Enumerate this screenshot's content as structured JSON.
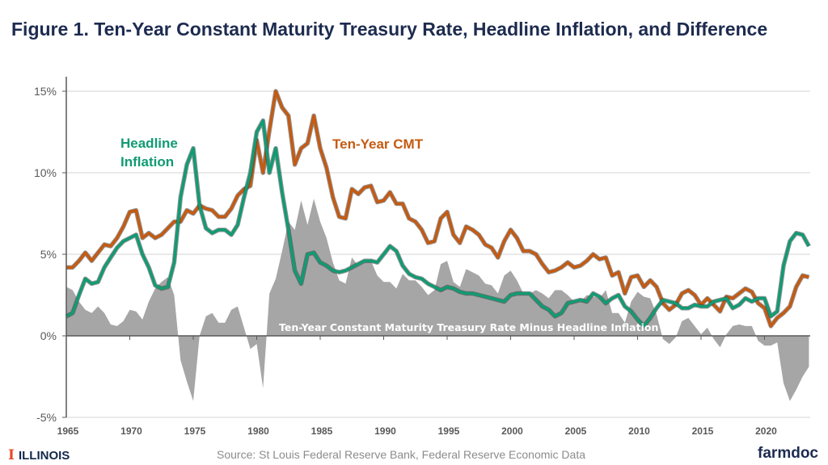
{
  "chart_data": {
    "type": "line",
    "title": "Figure 1. Ten-Year Constant Maturity Treasury Rate, Headline Inflation, and Difference",
    "xlabel": "",
    "ylabel": "",
    "x_start": 1965,
    "x_step": 0.5,
    "xlim": [
      1965,
      2023.6
    ],
    "ylim": [
      -5,
      15
    ],
    "y_ticks": [
      -5,
      0,
      5,
      10,
      15
    ],
    "y_tick_labels": [
      "-5%",
      "0%",
      "5%",
      "10%",
      "15%"
    ],
    "x_ticks": [
      1965,
      1970,
      1975,
      1980,
      1985,
      1990,
      1995,
      2000,
      2005,
      2010,
      2015,
      2020
    ],
    "x_tick_labels": [
      "1965",
      "1970",
      "1975",
      "1980",
      "1985",
      "1990",
      "1995",
      "2000",
      "2005",
      "2010",
      "2015",
      "2020"
    ],
    "grid": true,
    "series": [
      {
        "name": "Ten-Year CMT",
        "label": "Ten-Year CMT",
        "color": "#c55a11",
        "values": [
          4.2,
          4.2,
          4.6,
          5.1,
          4.6,
          5.1,
          5.6,
          5.5,
          6.0,
          6.7,
          7.6,
          7.7,
          6.0,
          6.3,
          6.0,
          6.2,
          6.6,
          7.0,
          7.0,
          7.7,
          7.5,
          8.0,
          7.8,
          7.7,
          7.3,
          7.3,
          7.8,
          8.6,
          9.0,
          9.2,
          12.0,
          10.0,
          12.6,
          15.0,
          14.0,
          13.5,
          10.5,
          11.5,
          11.8,
          13.5,
          11.5,
          10.3,
          8.5,
          7.3,
          7.2,
          9.0,
          8.7,
          9.1,
          9.2,
          8.2,
          8.3,
          8.8,
          8.1,
          8.1,
          7.2,
          7.0,
          6.5,
          5.7,
          5.8,
          7.2,
          7.6,
          6.2,
          5.7,
          6.7,
          6.5,
          6.2,
          5.6,
          5.4,
          4.8,
          5.8,
          6.5,
          6.0,
          5.2,
          5.2,
          5.0,
          4.4,
          3.9,
          4.0,
          4.2,
          4.5,
          4.2,
          4.3,
          4.6,
          5.0,
          4.7,
          4.8,
          3.7,
          3.9,
          2.6,
          3.6,
          3.7,
          3.0,
          3.4,
          3.0,
          2.0,
          1.6,
          1.9,
          2.6,
          2.8,
          2.5,
          1.9,
          2.3,
          1.9,
          1.5,
          2.4,
          2.3,
          2.6,
          2.9,
          2.7,
          2.0,
          1.7,
          0.6,
          1.1,
          1.4,
          1.8,
          3.0,
          3.7,
          3.6
        ]
      },
      {
        "name": "Headline Inflation",
        "label_line1": "Headline",
        "label_line2": "Inflation",
        "color": "#119b73",
        "values": [
          1.2,
          1.4,
          2.5,
          3.5,
          3.2,
          3.3,
          4.2,
          4.8,
          5.4,
          5.8,
          6.0,
          6.2,
          5.0,
          4.2,
          3.1,
          2.9,
          3.0,
          4.5,
          8.5,
          10.5,
          11.5,
          8.0,
          6.6,
          6.3,
          6.5,
          6.5,
          6.2,
          6.8,
          8.5,
          10.0,
          12.5,
          13.2,
          10.0,
          11.5,
          8.8,
          6.5,
          4.0,
          3.2,
          5.0,
          5.1,
          4.5,
          4.3,
          4.0,
          3.9,
          4.0,
          4.2,
          4.4,
          4.6,
          4.6,
          4.5,
          5.0,
          5.5,
          5.2,
          4.3,
          3.8,
          3.6,
          3.5,
          3.2,
          3.0,
          2.8,
          3.0,
          2.9,
          2.7,
          2.6,
          2.6,
          2.5,
          2.4,
          2.3,
          2.2,
          2.1,
          2.5,
          2.6,
          2.6,
          2.6,
          2.2,
          1.8,
          1.6,
          1.2,
          1.4,
          2.0,
          2.1,
          2.2,
          2.1,
          2.6,
          2.4,
          2.0,
          2.3,
          2.5,
          1.8,
          1.5,
          1.0,
          0.6,
          1.1,
          1.7,
          2.2,
          2.1,
          2.0,
          1.7,
          1.7,
          1.9,
          1.8,
          1.8,
          2.1,
          2.2,
          2.3,
          1.7,
          1.9,
          2.3,
          2.1,
          2.3,
          2.3,
          1.2,
          1.5,
          4.3,
          5.8,
          6.3,
          6.2,
          5.5
        ]
      }
    ],
    "area": {
      "name": "Ten-Year Constant Maturity Treasury Rate Minus Headline Inflation",
      "color": "#a6a6a6"
    },
    "source": "Source:  St Louis Federal Reserve Bank, Federal Reserve Economic Data"
  },
  "footer": {
    "logo_mark": "I",
    "logo_text": "ILLINOIS",
    "brand": "farmdoc"
  }
}
